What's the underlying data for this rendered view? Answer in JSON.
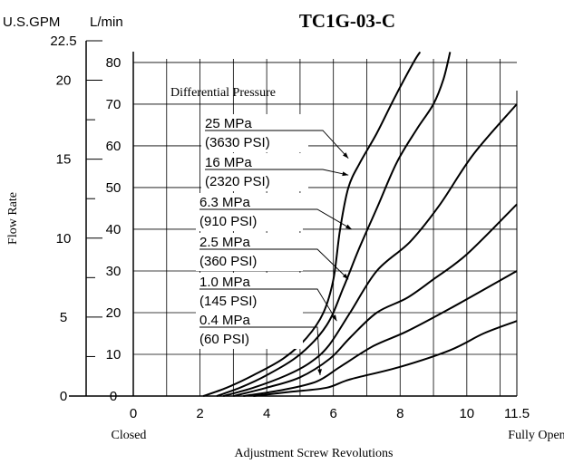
{
  "chart_data": {
    "type": "line",
    "title": "TC1G-03-C",
    "xlabel": "Adjustment Screw Revolutions",
    "ylabel": "Flow Rate",
    "y_units_outer": "U.S.GPM",
    "y_units_inner": "L/min",
    "x_closed_label": "Closed",
    "x_open_label": "Fully Open",
    "annotation_header": "Differential Pressure",
    "xlim": [
      0,
      11.5
    ],
    "ylim_lpm": [
      0,
      85.2
    ],
    "ylim_gpm": [
      0,
      22.5
    ],
    "grid": true,
    "x_ticks": [
      "0",
      "2",
      "4",
      "6",
      "8",
      "10",
      "11.5"
    ],
    "y_ticks_lpm": [
      "0",
      "10",
      "20",
      "30",
      "40",
      "50",
      "60",
      "70",
      "80"
    ],
    "y_ticks_gpm": [
      "0",
      "5",
      "10",
      "15",
      "20",
      "22.5"
    ],
    "series": [
      {
        "name": "25 MPa (3630 PSI)",
        "label_line1": "25 MPa",
        "label_line2": "(3630 PSI)",
        "points": [
          [
            2.1,
            0
          ],
          [
            2.8,
            2
          ],
          [
            3.6,
            5
          ],
          [
            4.5,
            9
          ],
          [
            5.2,
            14
          ],
          [
            5.7,
            20
          ],
          [
            6.0,
            28
          ],
          [
            6.2,
            40
          ],
          [
            6.45,
            50
          ],
          [
            6.8,
            56
          ],
          [
            7.3,
            63
          ],
          [
            7.8,
            71
          ],
          [
            8.4,
            80
          ],
          [
            8.6,
            82.5
          ]
        ]
      },
      {
        "name": "16 MPa (2320 PSI)",
        "label_line1": "16 MPa",
        "label_line2": "(2320 PSI)",
        "points": [
          [
            2.5,
            0
          ],
          [
            3.2,
            2
          ],
          [
            4.0,
            5
          ],
          [
            5.0,
            10
          ],
          [
            5.8,
            17
          ],
          [
            6.3,
            26
          ],
          [
            6.75,
            35
          ],
          [
            7.3,
            45
          ],
          [
            7.9,
            56
          ],
          [
            8.5,
            64
          ],
          [
            9.0,
            70
          ],
          [
            9.3,
            76
          ],
          [
            9.5,
            82.5
          ]
        ]
      },
      {
        "name": "6.3 MPa (910 PSI)",
        "label_line1": "6.3 MPa",
        "label_line2": "(910 PSI)",
        "points": [
          [
            2.7,
            0
          ],
          [
            3.6,
            2
          ],
          [
            4.6,
            5
          ],
          [
            5.3,
            8
          ],
          [
            5.85,
            12
          ],
          [
            6.5,
            20
          ],
          [
            7.3,
            30
          ],
          [
            8.3,
            37
          ],
          [
            9.2,
            46
          ],
          [
            10.2,
            58
          ],
          [
            11.5,
            70
          ]
        ]
      },
      {
        "name": "2.5 MPa (360 PSI)",
        "label_line1": "2.5 MPa",
        "label_line2": "(360 PSI)",
        "points": [
          [
            3.0,
            0
          ],
          [
            4.0,
            2
          ],
          [
            5.0,
            4.5
          ],
          [
            5.9,
            9
          ],
          [
            6.5,
            14
          ],
          [
            7.3,
            20
          ],
          [
            8.2,
            23.5
          ],
          [
            9.0,
            28
          ],
          [
            10.0,
            34
          ],
          [
            11.5,
            46
          ]
        ]
      },
      {
        "name": "1.0 MPa (145 PSI)",
        "label_line1": "1.0 MPa",
        "label_line2": "(145 PSI)",
        "points": [
          [
            3.3,
            0
          ],
          [
            4.5,
            1.5
          ],
          [
            5.5,
            3.5
          ],
          [
            6.2,
            7
          ],
          [
            7.2,
            12
          ],
          [
            8.2,
            15.5
          ],
          [
            9.5,
            21
          ],
          [
            11.5,
            30
          ]
        ]
      },
      {
        "name": "0.4 MPa (60 PSI)",
        "label_line1": "0.4 MPa",
        "label_line2": "(60 PSI)",
        "points": [
          [
            3.6,
            0
          ],
          [
            4.7,
            1
          ],
          [
            5.8,
            2
          ],
          [
            6.5,
            4
          ],
          [
            8.0,
            7
          ],
          [
            9.5,
            11
          ],
          [
            10.5,
            15
          ],
          [
            11.5,
            18
          ]
        ]
      }
    ]
  }
}
